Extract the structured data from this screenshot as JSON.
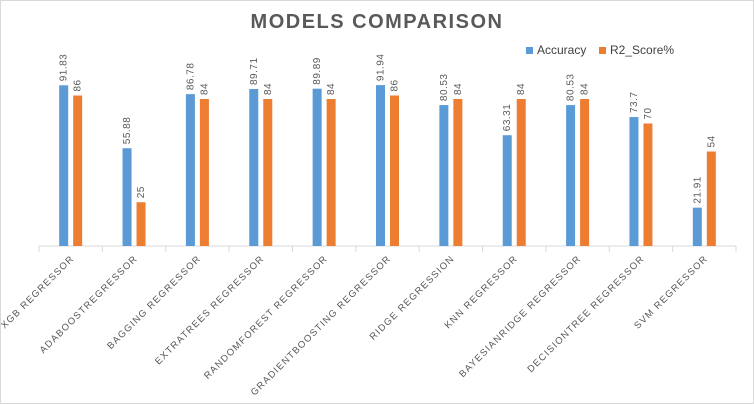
{
  "chart_data": {
    "type": "bar",
    "title": "MODELS COMPARISON",
    "categories": [
      "XGB REGRESSOR",
      "ADABOOSTREGRESSOR",
      "BAGGING REGRESSOR",
      "EXTRATREES REGRESSOR",
      "RANDOMFOREST REGRESSOR",
      "GRADIENTBOOSTING REGRESSOR",
      "RIDGE REGRESSION",
      "KNN REGRESSOR",
      "BAYESIANRIDGE REGRESSOR",
      "DECISIONTREE REGRESSOR",
      "SVM REGRESSOR"
    ],
    "series": [
      {
        "name": "Accuracy",
        "color": "#5b9bd5",
        "values": [
          91.83,
          55.88,
          86.78,
          89.71,
          89.89,
          91.94,
          80.53,
          63.31,
          80.53,
          73.7,
          21.91
        ],
        "labels": [
          "91.83",
          "55.88",
          "86.78",
          "89.71",
          "89.89",
          "91.94",
          "80.53",
          "63.31",
          "80.53",
          "73.7",
          "21.91"
        ]
      },
      {
        "name": "R2_Score%",
        "color": "#ed7d31",
        "values": [
          86,
          25,
          84,
          84,
          84,
          86,
          84,
          84,
          84,
          70,
          54
        ],
        "labels": [
          "86",
          "25",
          "84",
          "84",
          "84",
          "86",
          "84",
          "84",
          "84",
          "70",
          "54"
        ]
      }
    ],
    "ylim": [
      0,
      100
    ],
    "legend_position": "top-right",
    "grid": false
  }
}
